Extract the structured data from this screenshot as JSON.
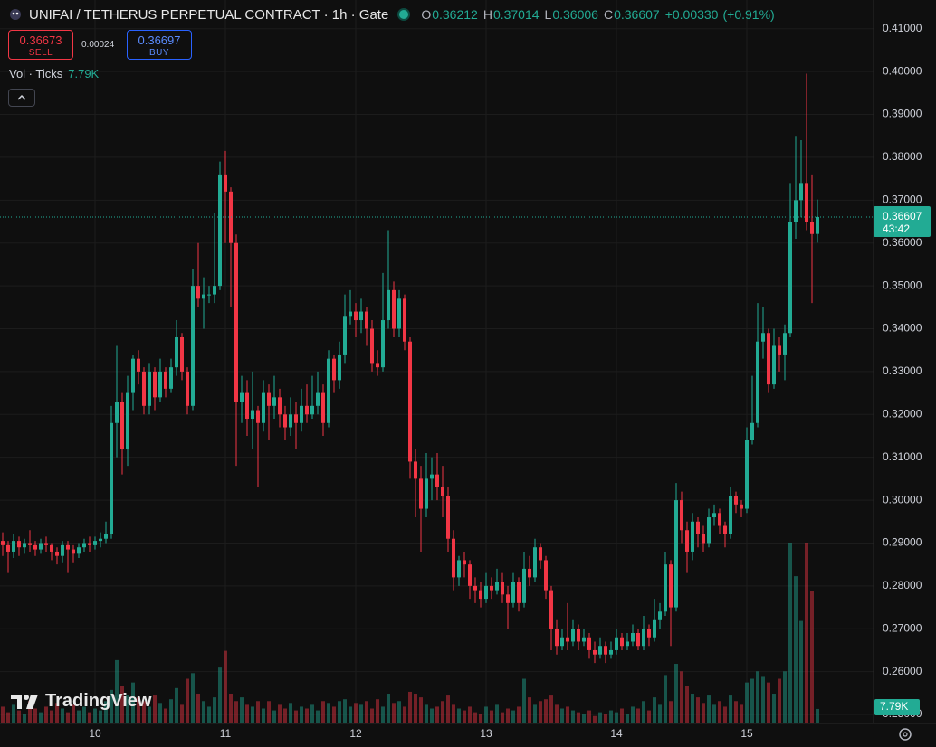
{
  "chart_data": {
    "type": "candlestick",
    "title": "UNIFAI / TETHERUS PERPETUAL CONTRACT · 1h · Gate",
    "ohlc_labels": [
      "O",
      "H",
      "L",
      "C"
    ],
    "change": "+0.00330",
    "change_pct": "(+0.91%)",
    "quote": {
      "sell": "0.36673",
      "sell_label": "SELL",
      "spread": "0.00024",
      "buy": "0.36697",
      "buy_label": "BUY"
    },
    "countdown": "43:42",
    "watermark": "TradingView",
    "up_color": "#22ab94",
    "down_color": "#f23645",
    "grid": true,
    "open": [
      0.2905,
      0.2895,
      0.288,
      0.2905,
      0.289,
      0.29,
      0.2895,
      0.2885,
      0.29,
      0.2895,
      0.288,
      0.287,
      0.2895,
      0.2885,
      0.2875,
      0.289,
      0.29,
      0.2895,
      0.2905,
      0.291,
      0.292,
      0.318,
      0.323,
      0.312,
      0.325,
      0.333,
      0.33,
      0.322,
      0.33,
      0.324,
      0.33,
      0.326,
      0.331,
      0.338,
      0.33,
      0.322,
      0.35,
      0.347,
      0.348,
      0.348,
      0.35,
      0.376,
      0.372,
      0.36,
      0.323,
      0.325,
      0.319,
      0.321,
      0.318,
      0.325,
      0.322,
      0.324,
      0.32,
      0.317,
      0.32,
      0.318,
      0.322,
      0.32,
      0.322,
      0.325,
      0.318,
      0.333,
      0.328,
      0.334,
      0.343,
      0.344,
      0.342,
      0.344,
      0.34,
      0.332,
      0.331,
      0.342,
      0.349,
      0.34,
      0.347,
      0.337,
      0.309,
      0.305,
      0.298,
      0.305,
      0.306,
      0.303,
      0.301,
      0.291,
      0.282,
      0.286,
      0.285,
      0.28,
      0.279,
      0.277,
      0.28,
      0.279,
      0.281,
      0.278,
      0.276,
      0.281,
      0.276,
      0.284,
      0.282,
      0.289,
      0.286,
      0.279,
      0.27,
      0.266,
      0.268,
      0.267,
      0.27,
      0.267,
      0.268,
      0.265,
      0.264,
      0.266,
      0.264,
      0.265,
      0.268,
      0.266,
      0.267,
      0.269,
      0.266,
      0.27,
      0.268,
      0.272,
      0.274,
      0.285,
      0.275,
      0.3,
      0.293,
      0.288,
      0.295,
      0.292,
      0.29,
      0.296,
      0.297,
      0.294,
      0.292,
      0.301,
      0.299,
      0.298,
      0.314,
      0.318,
      0.337,
      0.339,
      0.327,
      0.336,
      0.334,
      0.339,
      0.365,
      0.37,
      0.374,
      0.365,
      0.36212
    ],
    "high": [
      0.2925,
      0.2905,
      0.292,
      0.2915,
      0.291,
      0.293,
      0.2905,
      0.291,
      0.2915,
      0.29,
      0.289,
      0.2905,
      0.2905,
      0.2895,
      0.29,
      0.291,
      0.2915,
      0.2915,
      0.2925,
      0.295,
      0.322,
      0.336,
      0.325,
      0.329,
      0.334,
      0.335,
      0.331,
      0.332,
      0.331,
      0.333,
      0.331,
      0.333,
      0.342,
      0.339,
      0.331,
      0.354,
      0.36,
      0.352,
      0.35,
      0.367,
      0.379,
      0.3815,
      0.373,
      0.362,
      0.329,
      0.328,
      0.33,
      0.322,
      0.328,
      0.327,
      0.329,
      0.326,
      0.322,
      0.324,
      0.323,
      0.326,
      0.327,
      0.329,
      0.33,
      0.327,
      0.335,
      0.334,
      0.337,
      0.348,
      0.349,
      0.346,
      0.347,
      0.345,
      0.342,
      0.335,
      0.353,
      0.363,
      0.351,
      0.349,
      0.348,
      0.338,
      0.312,
      0.308,
      0.311,
      0.31,
      0.311,
      0.308,
      0.303,
      0.293,
      0.287,
      0.288,
      0.286,
      0.282,
      0.281,
      0.283,
      0.282,
      0.284,
      0.283,
      0.28,
      0.283,
      0.282,
      0.288,
      0.287,
      0.291,
      0.29,
      0.287,
      0.28,
      0.272,
      0.27,
      0.276,
      0.272,
      0.271,
      0.27,
      0.269,
      0.267,
      0.268,
      0.267,
      0.267,
      0.27,
      0.269,
      0.269,
      0.271,
      0.27,
      0.273,
      0.271,
      0.277,
      0.276,
      0.288,
      0.286,
      0.304,
      0.302,
      0.295,
      0.297,
      0.296,
      0.294,
      0.298,
      0.299,
      0.298,
      0.295,
      0.303,
      0.302,
      0.3,
      0.317,
      0.329,
      0.346,
      0.345,
      0.34,
      0.34,
      0.338,
      0.341,
      0.374,
      0.385,
      0.384,
      0.3995,
      0.376,
      0.37014
    ],
    "low": [
      0.287,
      0.283,
      0.2865,
      0.287,
      0.2875,
      0.288,
      0.287,
      0.2875,
      0.288,
      0.286,
      0.285,
      0.2855,
      0.283,
      0.2855,
      0.2865,
      0.288,
      0.288,
      0.2885,
      0.289,
      0.29,
      0.291,
      0.31,
      0.306,
      0.308,
      0.321,
      0.327,
      0.32,
      0.32,
      0.321,
      0.323,
      0.324,
      0.325,
      0.329,
      0.328,
      0.32,
      0.321,
      0.345,
      0.34,
      0.346,
      0.346,
      0.349,
      0.36,
      0.345,
      0.308,
      0.318,
      0.315,
      0.312,
      0.303,
      0.316,
      0.314,
      0.319,
      0.317,
      0.314,
      0.315,
      0.312,
      0.316,
      0.318,
      0.319,
      0.32,
      0.315,
      0.317,
      0.325,
      0.326,
      0.332,
      0.341,
      0.338,
      0.339,
      0.336,
      0.33,
      0.329,
      0.33,
      0.34,
      0.338,
      0.338,
      0.335,
      0.305,
      0.296,
      0.288,
      0.296,
      0.3,
      0.3,
      0.296,
      0.288,
      0.279,
      0.28,
      0.282,
      0.277,
      0.276,
      0.275,
      0.276,
      0.277,
      0.278,
      0.276,
      0.27,
      0.275,
      0.274,
      0.275,
      0.28,
      0.281,
      0.284,
      0.277,
      0.265,
      0.264,
      0.265,
      0.265,
      0.266,
      0.265,
      0.266,
      0.263,
      0.262,
      0.263,
      0.262,
      0.263,
      0.264,
      0.265,
      0.265,
      0.266,
      0.265,
      0.265,
      0.266,
      0.267,
      0.27,
      0.273,
      0.266,
      0.274,
      0.29,
      0.283,
      0.286,
      0.289,
      0.288,
      0.289,
      0.294,
      0.292,
      0.289,
      0.291,
      0.297,
      0.296,
      0.297,
      0.313,
      0.317,
      0.333,
      0.325,
      0.326,
      0.33,
      0.328,
      0.338,
      0.361,
      0.366,
      0.363,
      0.346,
      0.36006
    ],
    "close": [
      0.2895,
      0.288,
      0.2905,
      0.289,
      0.29,
      0.2895,
      0.2885,
      0.29,
      0.2895,
      0.288,
      0.287,
      0.2895,
      0.2885,
      0.2875,
      0.289,
      0.29,
      0.2895,
      0.2905,
      0.291,
      0.292,
      0.318,
      0.323,
      0.312,
      0.325,
      0.333,
      0.33,
      0.322,
      0.33,
      0.324,
      0.33,
      0.326,
      0.331,
      0.338,
      0.33,
      0.322,
      0.35,
      0.347,
      0.348,
      0.348,
      0.35,
      0.376,
      0.372,
      0.36,
      0.323,
      0.325,
      0.319,
      0.321,
      0.318,
      0.325,
      0.322,
      0.324,
      0.32,
      0.317,
      0.32,
      0.318,
      0.322,
      0.32,
      0.322,
      0.325,
      0.318,
      0.333,
      0.328,
      0.334,
      0.343,
      0.344,
      0.342,
      0.344,
      0.34,
      0.332,
      0.331,
      0.342,
      0.349,
      0.34,
      0.347,
      0.337,
      0.309,
      0.305,
      0.298,
      0.305,
      0.306,
      0.303,
      0.301,
      0.291,
      0.282,
      0.286,
      0.285,
      0.28,
      0.279,
      0.277,
      0.28,
      0.279,
      0.281,
      0.278,
      0.276,
      0.281,
      0.276,
      0.284,
      0.282,
      0.289,
      0.286,
      0.279,
      0.27,
      0.266,
      0.268,
      0.267,
      0.27,
      0.267,
      0.268,
      0.265,
      0.264,
      0.266,
      0.264,
      0.265,
      0.268,
      0.266,
      0.267,
      0.269,
      0.266,
      0.27,
      0.268,
      0.272,
      0.274,
      0.285,
      0.275,
      0.3,
      0.293,
      0.288,
      0.295,
      0.292,
      0.29,
      0.296,
      0.297,
      0.294,
      0.292,
      0.301,
      0.299,
      0.298,
      0.314,
      0.318,
      0.337,
      0.339,
      0.327,
      0.336,
      0.334,
      0.339,
      0.365,
      0.37,
      0.374,
      0.365,
      0.3621,
      0.36607
    ],
    "volume": {
      "name": "Vol · Ticks",
      "last_label": "7.79K",
      "values": [
        9000,
        6000,
        10000,
        7000,
        5000,
        12000,
        8000,
        6000,
        9000,
        7000,
        11000,
        8000,
        6000,
        10000,
        7000,
        9000,
        6000,
        8000,
        7000,
        12000,
        18000,
        34000,
        20000,
        15000,
        22000,
        14000,
        12000,
        9000,
        15000,
        11000,
        8000,
        13000,
        19000,
        10000,
        24000,
        27000,
        16000,
        12000,
        9000,
        14000,
        30000,
        39000,
        16000,
        12000,
        14000,
        10000,
        9000,
        12000,
        8000,
        12000,
        7000,
        10000,
        8000,
        11000,
        7000,
        9000,
        8000,
        10000,
        7000,
        12000,
        11000,
        9000,
        12000,
        13000,
        9000,
        11000,
        10000,
        12000,
        8000,
        13000,
        9000,
        16000,
        11000,
        12000,
        9000,
        17000,
        16000,
        14000,
        10000,
        8000,
        9000,
        12000,
        15000,
        10000,
        8000,
        7000,
        9000,
        6000,
        5000,
        9000,
        7000,
        10000,
        6000,
        8000,
        7000,
        9000,
        24000,
        14000,
        10000,
        12000,
        13000,
        15000,
        10000,
        8000,
        9000,
        7000,
        6000,
        5000,
        7000,
        4000,
        6000,
        5000,
        7000,
        6000,
        8000,
        5000,
        9000,
        8000,
        12000,
        7000,
        14000,
        10000,
        26000,
        12000,
        32000,
        28000,
        20000,
        16000,
        14000,
        11000,
        15000,
        10000,
        12000,
        9000,
        15000,
        12000,
        10000,
        22000,
        24000,
        28000,
        25000,
        22000,
        16000,
        24000,
        28000,
        97000,
        79000,
        55000,
        97000,
        71000,
        7790
      ]
    },
    "ylim": [
      0.2479,
      0.4167
    ],
    "yticks": [
      {
        "value": 0.25,
        "label": "0.25000"
      },
      {
        "value": 0.26,
        "label": "0.26000"
      },
      {
        "value": 0.27,
        "label": "0.27000"
      },
      {
        "value": 0.28,
        "label": "0.28000"
      },
      {
        "value": 0.29,
        "label": "0.29000"
      },
      {
        "value": 0.3,
        "label": "0.30000"
      },
      {
        "value": 0.31,
        "label": "0.31000"
      },
      {
        "value": 0.32,
        "label": "0.32000"
      },
      {
        "value": 0.33,
        "label": "0.33000"
      },
      {
        "value": 0.34,
        "label": "0.34000"
      },
      {
        "value": 0.35,
        "label": "0.35000"
      },
      {
        "value": 0.36,
        "label": "0.36000"
      },
      {
        "value": 0.37,
        "label": "0.37000"
      },
      {
        "value": 0.38,
        "label": "0.38000"
      },
      {
        "value": 0.39,
        "label": "0.39000"
      },
      {
        "value": 0.4,
        "label": "0.40000"
      },
      {
        "value": 0.41,
        "label": "0.41000"
      }
    ],
    "xticks": [
      {
        "value": 17,
        "label": "10"
      },
      {
        "value": 41,
        "label": "11"
      },
      {
        "value": 65,
        "label": "12"
      },
      {
        "value": 89,
        "label": "13"
      },
      {
        "value": 113,
        "label": "14"
      },
      {
        "value": 137,
        "label": "15"
      }
    ]
  }
}
